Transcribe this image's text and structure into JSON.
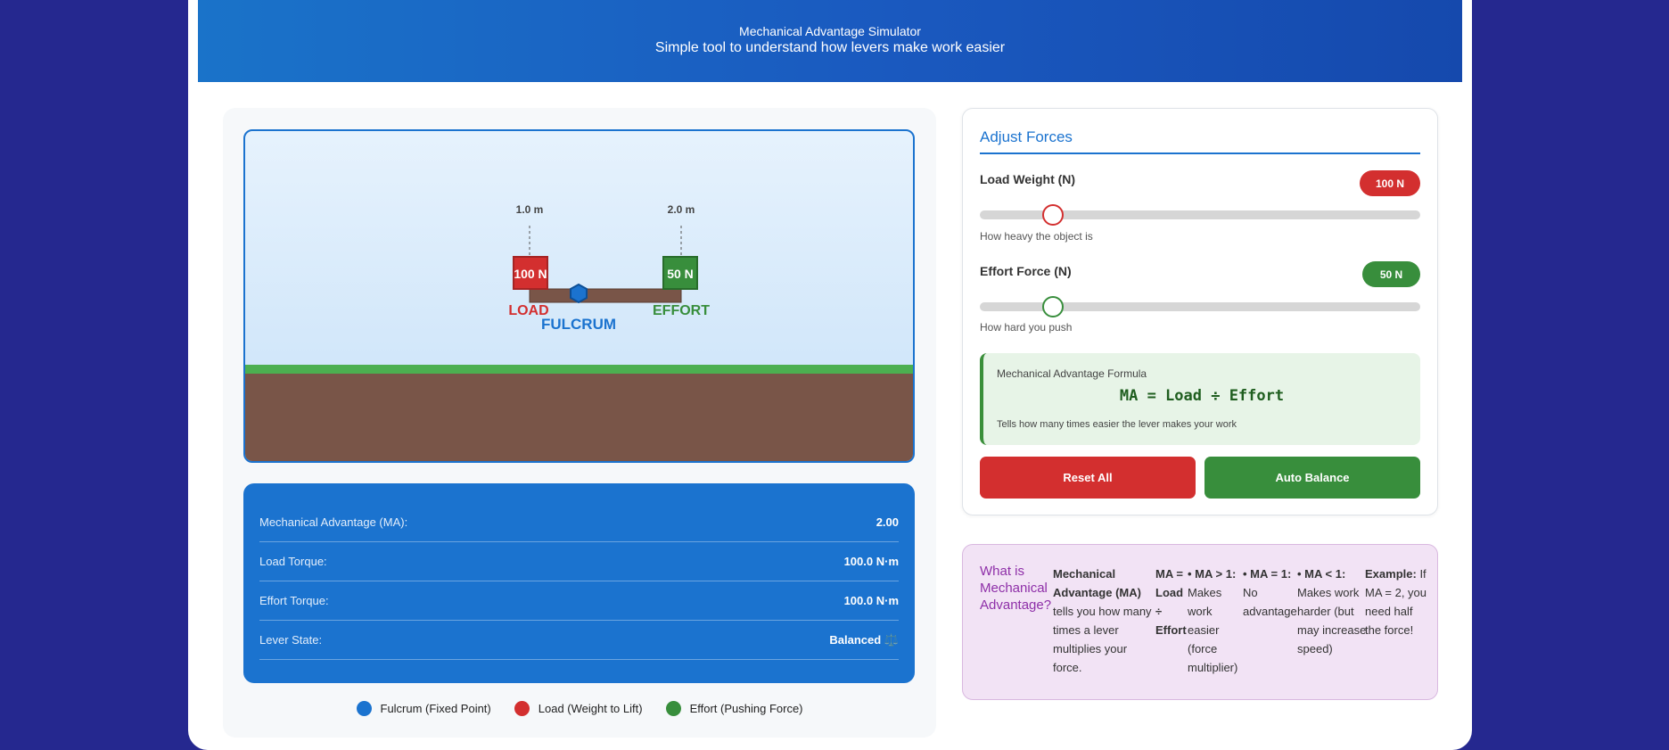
{
  "header": {
    "title": "Mechanical Advantage Simulator",
    "subtitle": "Simple tool to understand how levers make work easier"
  },
  "scene": {
    "load_distance": "1.0 m",
    "effort_distance": "2.0 m",
    "load_block_label": "100 N",
    "effort_block_label": "50 N",
    "load_text": "LOAD",
    "effort_text": "EFFORT",
    "fulcrum_text": "FULCRUM"
  },
  "results": {
    "rows": [
      {
        "label": "Mechanical Advantage (MA):",
        "value": "2.00"
      },
      {
        "label": "Load Torque:",
        "value": "100.0 N·m"
      },
      {
        "label": "Effort Torque:",
        "value": "100.0 N·m"
      },
      {
        "label": "Lever State:",
        "value": "Balanced ⚖️"
      }
    ]
  },
  "legend": [
    {
      "label": "Fulcrum (Fixed Point)",
      "color": "#1b73cf"
    },
    {
      "label": "Load (Weight to Lift)",
      "color": "#d32f2f"
    },
    {
      "label": "Effort (Pushing Force)",
      "color": "#388e3c"
    }
  ],
  "controls": {
    "title": "Adjust Forces",
    "load": {
      "label": "Load Weight (N)",
      "value": "100 N",
      "hint": "How heavy the object is",
      "level": 0.165,
      "color": "#d32f2f"
    },
    "effort": {
      "label": "Effort Force (N)",
      "value": "50 N",
      "hint": "How hard you push",
      "level": 0.165,
      "color": "#388e3c"
    },
    "formula": {
      "title": "Mechanical Advantage Formula",
      "expression": "MA = Load ÷ Effort",
      "description": "Tells how many times easier the lever makes your work"
    },
    "reset_label": "Reset All",
    "balance_label": "Auto Balance"
  },
  "info": {
    "title": "What is Mechanical Advantage?",
    "definition_term": "Mechanical Advantage (MA)",
    "definition_text": "tells you how many times a lever multiplies your force.",
    "formula_text": "MA = Load ÷ Effort",
    "gt_term": "• MA > 1:",
    "gt_text": "Makes work easier (force multiplier)",
    "eq_term": "• MA = 1:",
    "eq_text": "No advantage",
    "lt_term": "• MA < 1:",
    "lt_text": "Makes work harder (but may increase speed)",
    "example_term": "Example:",
    "example_text": "If MA = 2, you need half the force!"
  },
  "colors": {
    "fulcrum": "#1b73cf",
    "load": "#d32f2f",
    "effort": "#388e3c",
    "beam": "#795548",
    "ground": "#795548",
    "grass": "#4caf50"
  }
}
